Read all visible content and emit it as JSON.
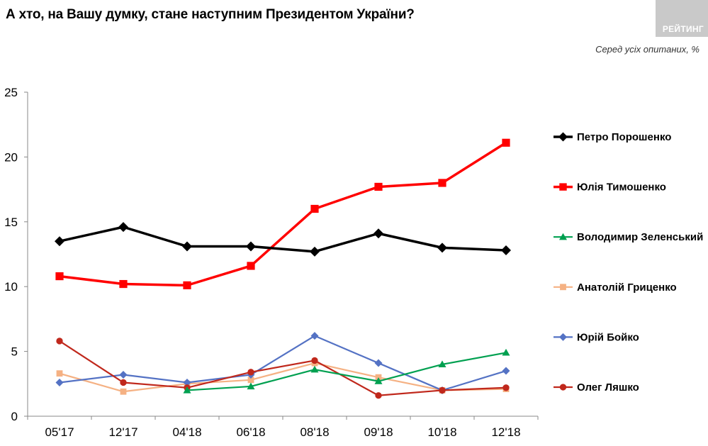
{
  "header": {
    "title": "А хто, на Вашу думку, стане наступним Президентом України?",
    "brand": "РЕЙТИНГ",
    "subtitle": "Серед усіх опитаних, %"
  },
  "chart_data": {
    "type": "line",
    "categories": [
      "05'17",
      "12'17",
      "04'18",
      "06'18",
      "08'18",
      "09'18",
      "10'18",
      "12'18"
    ],
    "ylim": [
      0,
      25
    ],
    "yticks": [
      0,
      5,
      10,
      15,
      20,
      25
    ],
    "grid": false,
    "legend_position": "right",
    "series": [
      {
        "name": "Петро Порошенко",
        "color": "#000000",
        "marker": "diamond",
        "values": [
          13.5,
          14.6,
          13.1,
          13.1,
          12.7,
          14.1,
          13.0,
          12.8
        ]
      },
      {
        "name": "Юлія Тимошенко",
        "color": "#ff0000",
        "marker": "square",
        "values": [
          10.8,
          10.2,
          10.1,
          11.6,
          16.0,
          17.7,
          18.0,
          21.1
        ]
      },
      {
        "name": "Володимир Зеленський",
        "color": "#00a050",
        "marker": "triangle",
        "values": [
          null,
          null,
          2.0,
          2.3,
          3.6,
          2.7,
          4.0,
          4.9
        ]
      },
      {
        "name": "Анатолій Гриценко",
        "color": "#f5b183",
        "marker": "square",
        "values": [
          3.3,
          1.9,
          2.5,
          2.8,
          4.1,
          3.0,
          2.0,
          2.1
        ]
      },
      {
        "name": "Юрій Бойко",
        "color": "#5472c4",
        "marker": "diamond",
        "values": [
          2.6,
          3.2,
          2.6,
          3.2,
          6.2,
          4.1,
          2.0,
          3.5
        ]
      },
      {
        "name": "Олег Ляшко",
        "color": "#c0281c",
        "marker": "circle",
        "values": [
          5.8,
          2.6,
          2.2,
          3.4,
          4.3,
          1.6,
          2.0,
          2.2
        ]
      }
    ]
  }
}
